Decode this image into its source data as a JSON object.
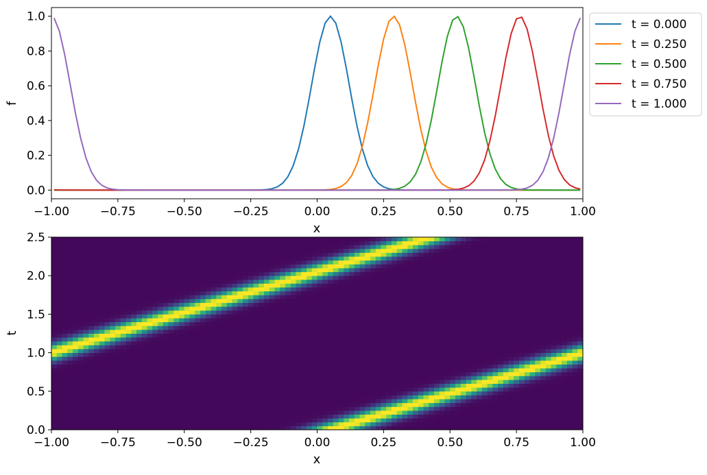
{
  "chart_data": [
    {
      "type": "line",
      "xlabel": "x",
      "ylabel": "f",
      "xlim": [
        -1.0,
        1.0
      ],
      "ylim": [
        -0.05,
        1.05
      ],
      "xticks": [
        -1.0,
        -0.75,
        -0.5,
        -0.25,
        0.0,
        0.25,
        0.5,
        0.75,
        1.0
      ],
      "xtick_labels": [
        "−1.00",
        "−0.75",
        "−0.50",
        "−0.25",
        "0.00",
        "0.25",
        "0.50",
        "0.75",
        "1.00"
      ],
      "yticks": [
        0.0,
        0.2,
        0.4,
        0.6,
        0.8,
        1.0
      ],
      "ytick_labels": [
        "0.0",
        "0.2",
        "0.4",
        "0.6",
        "0.8",
        "1.0"
      ],
      "grid": false,
      "legend_placement": "outside-right-top",
      "series": [
        {
          "name": "t = 0.000",
          "t": 0.0,
          "color": "#1f77b4"
        },
        {
          "name": "t = 0.250",
          "t": 0.25,
          "color": "#ff7f0e"
        },
        {
          "name": "t = 0.500",
          "t": 0.5,
          "color": "#2ca02c"
        },
        {
          "name": "t = 0.750",
          "t": 0.75,
          "color": "#d62728"
        },
        {
          "name": "t = 1.000",
          "t": 1.0,
          "color": "#9467bd"
        }
      ],
      "waveform": {
        "center_at_t0": 0.05,
        "speed": 0.95,
        "width": 0.1,
        "period": 2.0,
        "samples": 100
      }
    },
    {
      "type": "heatmap",
      "xlabel": "x",
      "ylabel": "t",
      "xlim": [
        -1.0,
        1.0
      ],
      "ylim": [
        0.0,
        2.5
      ],
      "xticks": [
        -1.0,
        -0.75,
        -0.5,
        -0.25,
        0.0,
        0.25,
        0.5,
        0.75,
        1.0
      ],
      "xtick_labels": [
        "−1.00",
        "−0.75",
        "−0.50",
        "−0.25",
        "0.00",
        "0.25",
        "0.50",
        "0.75",
        "1.00"
      ],
      "yticks": [
        0.0,
        0.5,
        1.0,
        1.5,
        2.0,
        2.5
      ],
      "ytick_labels": [
        "0.0",
        "0.5",
        "1.0",
        "1.5",
        "2.0",
        "2.5"
      ],
      "colormap": "viridis",
      "grid_cells": {
        "nx": 100,
        "nt": 50
      }
    }
  ]
}
